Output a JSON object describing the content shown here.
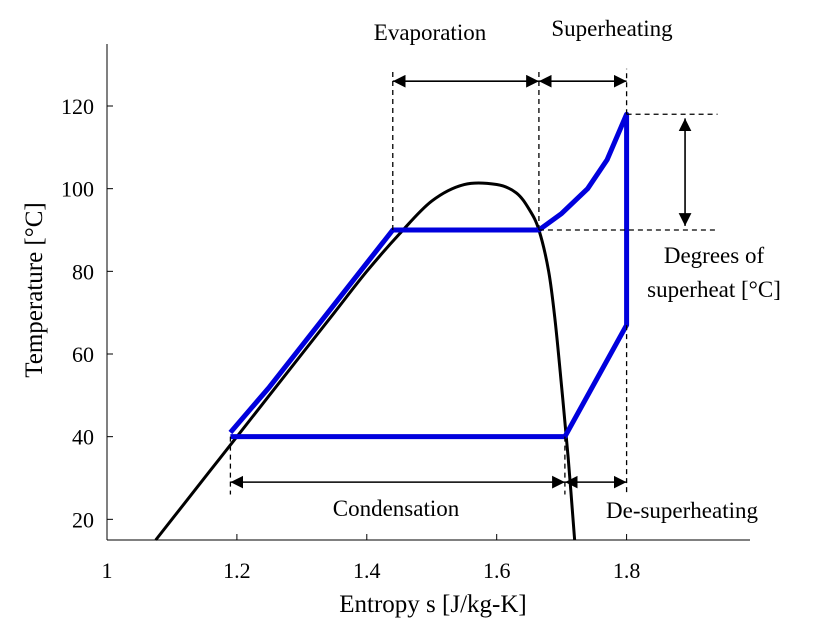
{
  "chart_data": {
    "type": "line",
    "xlabel": "Entropy s [J/kg-K]",
    "ylabel": "Temperature [°C]",
    "xlim": [
      1.0,
      1.99
    ],
    "ylim": [
      15,
      135
    ],
    "x_ticks": [
      "1",
      "1.2",
      "1.4",
      "1.6",
      "1.8"
    ],
    "y_ticks": [
      "20",
      "40",
      "60",
      "80",
      "100",
      "120"
    ],
    "grid": false,
    "series": [
      {
        "role": "saturation-dome",
        "color": "#000000",
        "x": [
          1.075,
          1.12,
          1.16,
          1.2,
          1.25,
          1.3,
          1.35,
          1.4,
          1.45,
          1.5,
          1.55,
          1.6,
          1.63,
          1.65,
          1.665,
          1.68,
          1.69,
          1.7,
          1.71,
          1.72
        ],
        "y": [
          15,
          24,
          32,
          40,
          50,
          60,
          70,
          80,
          89,
          97,
          101,
          101,
          99,
          95,
          90,
          80,
          68,
          52,
          35,
          15
        ]
      },
      {
        "role": "cycle",
        "color": "#0000dd",
        "x": [
          1.19,
          1.25,
          1.3,
          1.35,
          1.4,
          1.44,
          1.665,
          1.7,
          1.74,
          1.77,
          1.8,
          1.8,
          1.705,
          1.19
        ],
        "y": [
          41,
          52,
          62,
          72,
          82,
          90,
          90,
          94,
          100,
          107,
          118,
          67,
          40,
          40
        ]
      }
    ],
    "annotations": [
      {
        "text": "Evaporation",
        "from": 1.44,
        "to": 1.665,
        "y": 126
      },
      {
        "text": "Superheating",
        "from": 1.665,
        "to": 1.8,
        "y": 126
      },
      {
        "text": "Condensation",
        "from": 1.19,
        "to": 1.705,
        "y": 29
      },
      {
        "text": "De-superheating",
        "from": 1.705,
        "to": 1.8,
        "y": 29
      },
      {
        "text_line1": "Degrees of",
        "text_line2": "superheat [°C]",
        "from": 90,
        "to": 118,
        "x": 1.89
      }
    ]
  }
}
